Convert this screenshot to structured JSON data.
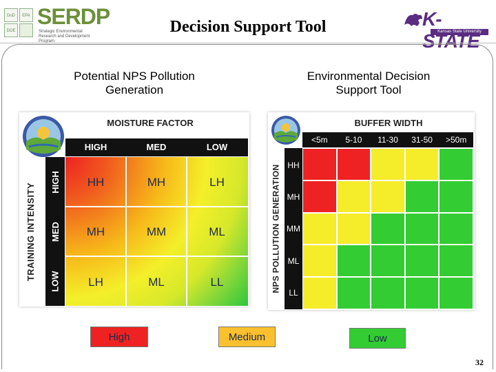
{
  "header": {
    "title": "Decision Support Tool",
    "left_logo_text": "SERDP",
    "left_logo_subtitle": "Strategic Environmental Research and Development Program",
    "left_small_logos": [
      "DoD",
      "EPA",
      "DOE"
    ],
    "right_logo_text": "K-STATE",
    "right_logo_subtitle": "Kansas State University"
  },
  "left_panel": {
    "title": "Potential NPS Pollution Generation",
    "axis_top": "MOISTURE FACTOR",
    "axis_left": "TRAINING INTENSITY",
    "columns": [
      "HIGH",
      "MED",
      "LOW"
    ],
    "rows": [
      "HIGH",
      "MED",
      "LOW"
    ],
    "cells": [
      [
        "HH",
        "MH",
        "LH"
      ],
      [
        "MH",
        "MM",
        "ML"
      ],
      [
        "LH",
        "ML",
        "LL"
      ]
    ]
  },
  "right_panel": {
    "title": "Environmental Decision Support Tool",
    "axis_top": "BUFFER WIDTH",
    "axis_left": "NPS POLLUTION GENERATION",
    "columns": [
      "<5m",
      "5-10",
      "11-30",
      "31-50",
      ">50m"
    ],
    "rows": [
      "HH",
      "MH",
      "MM",
      "ML",
      "LL"
    ],
    "levels": [
      [
        "high",
        "high",
        "medium",
        "medium",
        "low"
      ],
      [
        "high",
        "medium",
        "medium",
        "low",
        "low"
      ],
      [
        "medium",
        "medium",
        "low",
        "low",
        "low"
      ],
      [
        "medium",
        "low",
        "low",
        "low",
        "low"
      ],
      [
        "medium",
        "low",
        "low",
        "low",
        "low"
      ]
    ]
  },
  "legend": [
    {
      "label": "High",
      "color": "#ee2222"
    },
    {
      "label": "Medium",
      "color": "#fbc02d"
    },
    {
      "label": "Low",
      "color": "#33cc33"
    }
  ],
  "colors": {
    "high": "#ee2222",
    "medium": "#f5ec2a",
    "low": "#33cc33"
  },
  "slide_number": "32"
}
